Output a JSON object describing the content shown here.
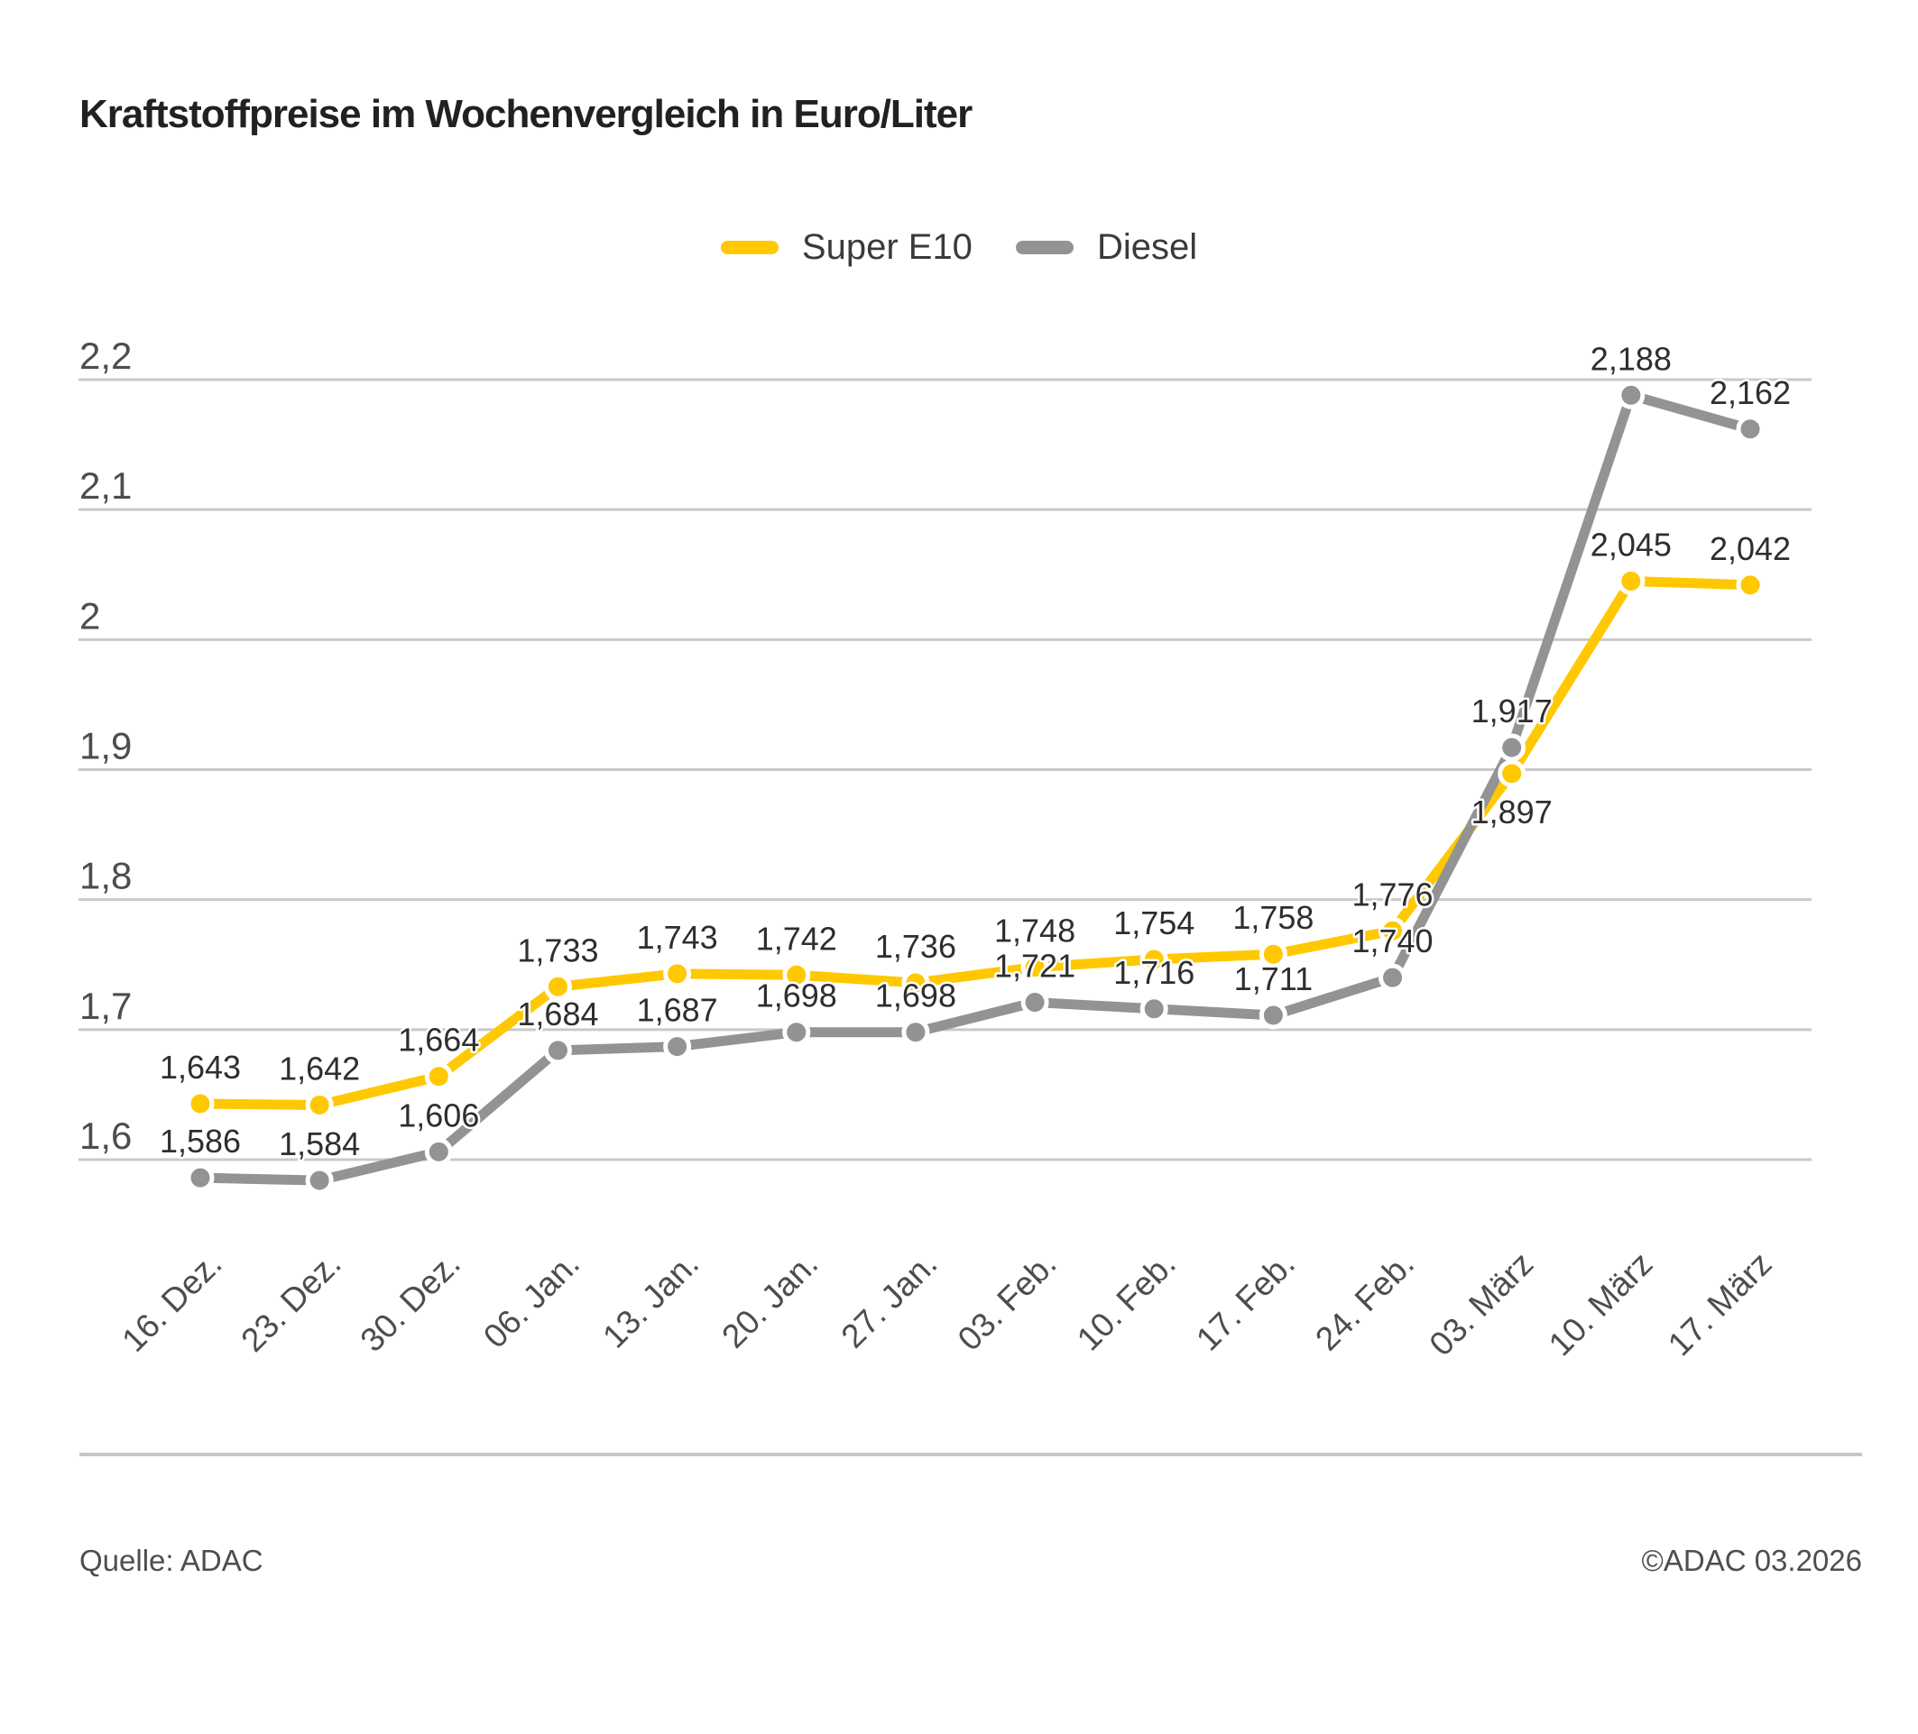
{
  "page": {
    "title": "Kraftstoffpreise im Wochenvergleich in Euro/Liter"
  },
  "footer": {
    "source": "Quelle: ADAC",
    "copyright": "©ADAC 03.2026"
  },
  "chart_data": {
    "type": "line",
    "title": "Kraftstoffpreise im Wochenvergleich in Euro/Liter",
    "xlabel": "",
    "ylabel": "Euro/Liter",
    "grid": true,
    "legend_position": "top-center",
    "categories": [
      "16. Dez.",
      "23. Dez.",
      "30. Dez.",
      "06. Jan.",
      "13. Jan.",
      "20. Jan.",
      "27. Jan.",
      "03. Feb.",
      "10. Feb.",
      "17. Feb.",
      "24. Feb.",
      "03. März",
      "10. März",
      "17. März"
    ],
    "y_axis": {
      "min": 1.6,
      "max": 2.2,
      "ticks": [
        {
          "value": 1.6,
          "label": "1,6"
        },
        {
          "value": 1.7,
          "label": "1,7"
        },
        {
          "value": 1.8,
          "label": "1,8"
        },
        {
          "value": 1.9,
          "label": "1,9"
        },
        {
          "value": 2.0,
          "label": "2"
        },
        {
          "value": 2.1,
          "label": "2,1"
        },
        {
          "value": 2.2,
          "label": "2,2"
        }
      ]
    },
    "series": [
      {
        "name": "Super E10",
        "color": "#FFC800",
        "values": [
          1.643,
          1.642,
          1.664,
          1.733,
          1.743,
          1.742,
          1.736,
          1.748,
          1.754,
          1.758,
          1.776,
          1.897,
          2.045,
          2.042
        ],
        "labels": [
          "1,643",
          "1,642",
          "1,664",
          "1,733",
          "1,743",
          "1,742",
          "1,736",
          "1,748",
          "1,754",
          "1,758",
          "1,776",
          "1,897",
          "2,045",
          "2,042"
        ],
        "label_position_overrides": {
          "11": "below"
        }
      },
      {
        "name": "Diesel",
        "color": "#939393",
        "values": [
          1.586,
          1.584,
          1.606,
          1.684,
          1.687,
          1.698,
          1.698,
          1.721,
          1.716,
          1.711,
          1.74,
          1.917,
          2.188,
          2.162
        ],
        "labels": [
          "1,586",
          "1,584",
          "1,606",
          "1,684",
          "1,687",
          "1,698",
          "1,698",
          "1,721",
          "1,716",
          "1,711",
          "1,740",
          "1,917",
          "2,188",
          "2,162"
        ],
        "label_position_overrides": {}
      }
    ]
  }
}
